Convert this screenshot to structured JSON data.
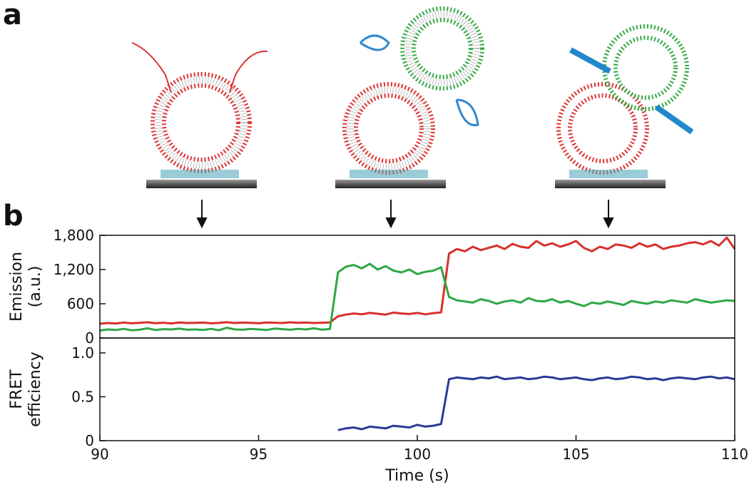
{
  "panel_labels": [
    "a",
    "b"
  ],
  "chart_data": [
    {
      "type": "line",
      "ylabel": [
        "Emission",
        "(a.u.)"
      ],
      "x": [
        90,
        90.25,
        90.5,
        90.75,
        91,
        91.25,
        91.5,
        91.75,
        92,
        92.25,
        92.5,
        92.75,
        93,
        93.25,
        93.5,
        93.75,
        94,
        94.25,
        94.5,
        94.75,
        95,
        95.25,
        95.5,
        95.75,
        96,
        96.25,
        96.5,
        96.75,
        97,
        97.25,
        97.5,
        97.75,
        98,
        98.25,
        98.5,
        98.75,
        99,
        99.25,
        99.5,
        99.75,
        100,
        100.25,
        100.5,
        100.75,
        101,
        101.25,
        101.5,
        101.75,
        102,
        102.25,
        102.5,
        102.75,
        103,
        103.25,
        103.5,
        103.75,
        104,
        104.25,
        104.5,
        104.75,
        105,
        105.25,
        105.5,
        105.75,
        106,
        106.25,
        106.5,
        106.75,
        107,
        107.25,
        107.5,
        107.75,
        108,
        108.25,
        108.5,
        108.75,
        109,
        109.25,
        109.5,
        109.75,
        110
      ],
      "series": [
        {
          "color": "#d7302a",
          "values": [
            250,
            262,
            255,
            270,
            258,
            265,
            275,
            260,
            268,
            255,
            272,
            262,
            266,
            270,
            258,
            264,
            276,
            262,
            270,
            266,
            258,
            272,
            268,
            262,
            275,
            266,
            270,
            262,
            268,
            272,
            380,
            410,
            430,
            415,
            440,
            425,
            410,
            445,
            430,
            420,
            440,
            415,
            435,
            450,
            1480,
            1560,
            1520,
            1600,
            1540,
            1580,
            1620,
            1560,
            1650,
            1600,
            1580,
            1700,
            1620,
            1660,
            1600,
            1640,
            1700,
            1580,
            1520,
            1600,
            1560,
            1640,
            1620,
            1580,
            1660,
            1600,
            1640,
            1560,
            1600,
            1620,
            1660,
            1680,
            1640,
            1700,
            1620,
            1760,
            1560
          ]
        },
        {
          "color": "#2ea843",
          "values": [
            130,
            150,
            140,
            160,
            135,
            145,
            170,
            140,
            155,
            150,
            165,
            145,
            150,
            140,
            160,
            135,
            180,
            150,
            145,
            160,
            150,
            140,
            165,
            155,
            145,
            160,
            150,
            170,
            145,
            160,
            1150,
            1250,
            1280,
            1220,
            1300,
            1200,
            1260,
            1180,
            1150,
            1200,
            1120,
            1160,
            1180,
            1240,
            720,
            660,
            640,
            620,
            680,
            650,
            600,
            640,
            660,
            620,
            700,
            650,
            640,
            680,
            620,
            650,
            600,
            560,
            620,
            600,
            640,
            610,
            580,
            650,
            620,
            600,
            640,
            620,
            660,
            640,
            620,
            680,
            650,
            620,
            640,
            660,
            650
          ]
        }
      ],
      "xlim": [
        90,
        110
      ],
      "ylim": [
        0,
        1800
      ],
      "yticks": [
        0,
        600,
        {
          "value": 1200,
          "label": "1,200"
        },
        {
          "value": 1800,
          "label": "1,800"
        }
      ]
    },
    {
      "type": "line",
      "ylabel": [
        "FRET",
        "efficiency"
      ],
      "xlabel": "Time (s)",
      "x": [
        90,
        90.25,
        90.5,
        90.75,
        91,
        91.25,
        91.5,
        91.75,
        92,
        92.25,
        92.5,
        92.75,
        93,
        93.25,
        93.5,
        93.75,
        94,
        94.25,
        94.5,
        94.75,
        95,
        95.25,
        95.5,
        95.75,
        96,
        96.25,
        96.5,
        96.75,
        97,
        97.25,
        97.5,
        97.75,
        98,
        98.25,
        98.5,
        98.75,
        99,
        99.25,
        99.5,
        99.75,
        100,
        100.25,
        100.5,
        100.75,
        101,
        101.25,
        101.5,
        101.75,
        102,
        102.25,
        102.5,
        102.75,
        103,
        103.25,
        103.5,
        103.75,
        104,
        104.25,
        104.5,
        104.75,
        105,
        105.25,
        105.5,
        105.75,
        106,
        106.25,
        106.5,
        106.75,
        107,
        107.25,
        107.5,
        107.75,
        108,
        108.25,
        108.5,
        108.75,
        109,
        109.25,
        109.5,
        109.75,
        110
      ],
      "series": [
        {
          "color": "#2b3a98",
          "values": [
            null,
            null,
            null,
            null,
            null,
            null,
            null,
            null,
            null,
            null,
            null,
            null,
            null,
            null,
            null,
            null,
            null,
            null,
            null,
            null,
            null,
            null,
            null,
            null,
            null,
            null,
            null,
            null,
            null,
            null,
            0.12,
            0.14,
            0.15,
            0.13,
            0.16,
            0.15,
            0.14,
            0.17,
            0.16,
            0.15,
            0.18,
            0.16,
            0.17,
            0.19,
            0.7,
            0.72,
            0.71,
            0.7,
            0.72,
            0.71,
            0.73,
            0.7,
            0.71,
            0.72,
            0.7,
            0.71,
            0.73,
            0.72,
            0.7,
            0.71,
            0.72,
            0.7,
            0.69,
            0.71,
            0.72,
            0.7,
            0.71,
            0.73,
            0.72,
            0.7,
            0.71,
            0.69,
            0.71,
            0.72,
            0.71,
            0.7,
            0.72,
            0.73,
            0.71,
            0.72,
            0.7
          ]
        }
      ],
      "xlim": [
        90,
        110
      ],
      "ylim": [
        0,
        1.17
      ],
      "xticks": [
        90,
        95,
        100,
        105,
        110
      ],
      "yticks": [
        0,
        0.5,
        {
          "value": 1,
          "label": "1.0"
        }
      ]
    }
  ]
}
